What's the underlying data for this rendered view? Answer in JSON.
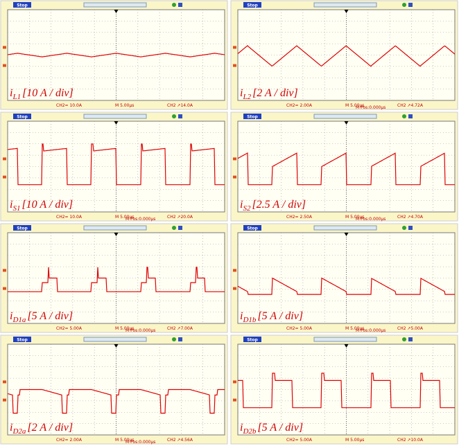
{
  "panels": [
    {
      "status": "Stop",
      "label": {
        "main": "i",
        "sub": "L1",
        "scale": "[10 A / div]"
      },
      "footer": [
        "CH2= 10.0A",
        "M 5.00μs",
        "CH2 ↗14.0A"
      ]
    },
    {
      "status": "Stop",
      "label": {
        "main": "i",
        "sub": "L2",
        "scale": "[2 A / div]"
      },
      "footer": [
        "CH2= 2.00A",
        "M 5.00μs",
        "M Pos:0.000μs",
        "CH2 ↗4.72A"
      ]
    },
    {
      "status": "Stop",
      "label": {
        "main": "i",
        "sub": "S1",
        "scale": "[10 A / div]"
      },
      "footer": [
        "CH2= 10.0A",
        "M 5.00μs",
        "M Pos:0.000μs",
        "CH2 ↗20.0A"
      ]
    },
    {
      "status": "Stop",
      "label": {
        "main": "i",
        "sub": "S2",
        "scale": "[2.5 A / div]"
      },
      "footer": [
        "CH2= 2.50A",
        "M 5.00μs",
        "M Pos:0.000μs",
        "CH2 ↗4.70A"
      ]
    },
    {
      "status": "Stop",
      "label": {
        "main": "i",
        "sub": "D1a",
        "scale": "[5 A / div]"
      },
      "footer": [
        "CH2= 5.00A",
        "M 5.00μs",
        "M Pos:0.000μs",
        "CH2 ↗7.00A"
      ]
    },
    {
      "status": "Stop",
      "label": {
        "main": "i",
        "sub": "D1b",
        "scale": "[5 A / div]"
      },
      "footer": [
        "CH2= 5.00A",
        "M 5.00μs",
        "M Pos:0.000μs",
        "CH2 ↗5.00A"
      ]
    },
    {
      "status": "Stop",
      "label": {
        "main": "i",
        "sub": "D2a",
        "scale": "[2 A / div]"
      },
      "footer": [
        "CH2= 2.00A",
        "M 5.00μs",
        "M Pos:0.000μs",
        "CH2 ↗4.56A"
      ]
    },
    {
      "status": "Stop",
      "label": {
        "main": "i",
        "sub": "D2b",
        "scale": "[5 A / div]"
      },
      "footer": [
        "CH2= 5.00A",
        "M 5.00μs",
        "CH2 ↗10.0A"
      ]
    }
  ]
}
